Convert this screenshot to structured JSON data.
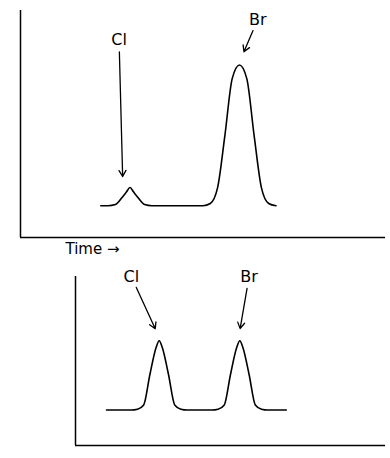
{
  "chart_data": [
    {
      "type": "line",
      "xlabel": "Time →",
      "x": [
        22,
        24,
        26,
        28,
        29,
        30,
        31,
        32,
        34,
        36,
        40,
        44,
        48,
        50,
        52,
        54,
        56,
        58,
        60,
        62,
        64,
        66,
        68,
        70
      ],
      "values": [
        14,
        14,
        14.5,
        18,
        20,
        22,
        20,
        18,
        14.5,
        14,
        14,
        14,
        14,
        14,
        15,
        22,
        45,
        70,
        76,
        70,
        45,
        22,
        15,
        14
      ],
      "xlim": [
        0,
        100
      ],
      "ylim": [
        0,
        100
      ],
      "tick_labels": false,
      "color": "#000000",
      "annotations": [
        {
          "text": "Cl",
          "x": 27,
          "y": 87,
          "arrow_to": [
            28,
            26
          ]
        },
        {
          "text": "Br",
          "x": 65,
          "y": 96,
          "arrow_to": [
            61,
            81
          ]
        }
      ]
    },
    {
      "type": "line",
      "x": [
        10,
        14,
        18,
        20,
        22,
        24,
        26,
        27,
        28,
        30,
        32,
        34,
        36,
        40,
        44,
        46,
        48,
        50,
        52,
        53,
        54,
        56,
        58,
        60,
        62,
        66,
        68
      ],
      "values": [
        21,
        21,
        21,
        21.5,
        24,
        42,
        58,
        62,
        58,
        42,
        24,
        21.5,
        21,
        21,
        21,
        21.5,
        24,
        42,
        58,
        62,
        58,
        42,
        24,
        21.5,
        21,
        21,
        21
      ],
      "xlim": [
        0,
        100
      ],
      "ylim": [
        0,
        100
      ],
      "tick_labels": false,
      "color": "#000000",
      "annotations": [
        {
          "text": "Cl",
          "x": 18,
          "y": 100,
          "arrow_to": [
            26,
            68
          ]
        },
        {
          "text": "Br",
          "x": 56,
          "y": 100,
          "arrow_to": [
            53,
            68
          ]
        }
      ]
    }
  ]
}
